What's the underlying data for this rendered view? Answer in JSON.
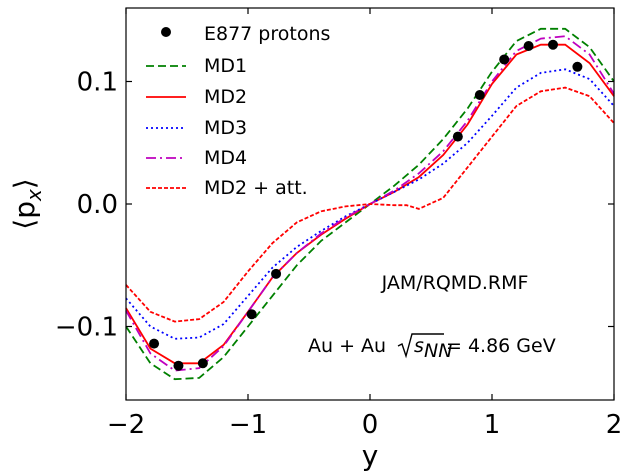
{
  "chart_data": {
    "type": "line",
    "title": "",
    "xlabel": "y",
    "ylabel": "⟨p_x⟩",
    "xlim": [
      -2,
      2
    ],
    "ylim": [
      -0.16,
      0.16
    ],
    "xticks": [
      -2,
      -1,
      0,
      1,
      2
    ],
    "xtick_labels": [
      "−2",
      "−1",
      "0",
      "1",
      "2"
    ],
    "yticks": [
      -0.1,
      0.0,
      0.1
    ],
    "ytick_labels": [
      "−0.1",
      "0.0",
      "0.1"
    ],
    "grid": false,
    "legend_position": "top-left",
    "annotations": [
      {
        "text": "JAM/RQMD.RMF"
      },
      {
        "prefix": "Au + Au ",
        "radicand": "s",
        "subscript": "NN",
        "suffix": " = 4.86 GeV"
      }
    ],
    "points": {
      "name": "E877 protons",
      "color": "#000000",
      "x": [
        -1.77,
        -1.57,
        -1.37,
        -0.97,
        -0.77,
        0.72,
        0.9,
        1.1,
        1.3,
        1.5,
        1.7
      ],
      "y": [
        -0.114,
        -0.132,
        -0.13,
        -0.09,
        -0.057,
        0.055,
        0.089,
        0.118,
        0.129,
        0.13,
        0.112
      ]
    },
    "series": [
      {
        "name": "MD1",
        "color": "#008000",
        "dash": "8,4",
        "x": [
          -2.0,
          -1.8,
          -1.6,
          -1.4,
          -1.2,
          -1.0,
          -0.8,
          -0.6,
          -0.4,
          -0.2,
          0.0,
          0.2,
          0.4,
          0.6,
          0.8,
          1.0,
          1.2,
          1.4,
          1.6,
          1.8,
          2.0
        ],
        "y": [
          -0.1,
          -0.13,
          -0.143,
          -0.142,
          -0.125,
          -0.1,
          -0.075,
          -0.05,
          -0.03,
          -0.015,
          0.0,
          0.015,
          0.032,
          0.053,
          0.078,
          0.108,
          0.133,
          0.143,
          0.143,
          0.128,
          0.1
        ]
      },
      {
        "name": "MD2",
        "color": "#ff0000",
        "dash": "",
        "x": [
          -2.0,
          -1.8,
          -1.6,
          -1.4,
          -1.2,
          -1.0,
          -0.8,
          -0.6,
          -0.4,
          -0.2,
          0.0,
          0.2,
          0.4,
          0.6,
          0.8,
          1.0,
          1.2,
          1.4,
          1.6,
          1.8,
          2.0
        ],
        "y": [
          -0.085,
          -0.118,
          -0.13,
          -0.13,
          -0.115,
          -0.088,
          -0.06,
          -0.04,
          -0.025,
          -0.012,
          0.0,
          0.01,
          0.022,
          0.04,
          0.065,
          0.098,
          0.122,
          0.13,
          0.13,
          0.115,
          0.088
        ]
      },
      {
        "name": "MD3",
        "color": "#0000ff",
        "dash": "2,3",
        "x": [
          -2.0,
          -1.8,
          -1.6,
          -1.4,
          -1.2,
          -1.0,
          -0.8,
          -0.6,
          -0.4,
          -0.2,
          0.0,
          0.2,
          0.4,
          0.6,
          0.8,
          1.0,
          1.2,
          1.4,
          1.6,
          1.8,
          2.0
        ],
        "y": [
          -0.077,
          -0.1,
          -0.11,
          -0.109,
          -0.098,
          -0.075,
          -0.052,
          -0.035,
          -0.022,
          -0.01,
          0.0,
          0.01,
          0.02,
          0.033,
          0.05,
          0.072,
          0.095,
          0.107,
          0.11,
          0.102,
          0.08
        ]
      },
      {
        "name": "MD4",
        "color": "#bf00bf",
        "dash": "10,4,2,4",
        "x": [
          -2.0,
          -1.8,
          -1.6,
          -1.4,
          -1.2,
          -1.0,
          -0.8,
          -0.6,
          -0.4,
          -0.2,
          0.0,
          0.2,
          0.4,
          0.6,
          0.8,
          1.0,
          1.2,
          1.4,
          1.6,
          1.8,
          2.0
        ],
        "y": [
          -0.087,
          -0.122,
          -0.136,
          -0.134,
          -0.116,
          -0.088,
          -0.06,
          -0.04,
          -0.024,
          -0.011,
          0.0,
          0.011,
          0.025,
          0.043,
          0.068,
          0.1,
          0.125,
          0.135,
          0.137,
          0.122,
          0.09
        ]
      },
      {
        "name": "MD2 + att.",
        "color": "#ff0000",
        "dash": "4,2",
        "x": [
          -2.0,
          -1.8,
          -1.6,
          -1.4,
          -1.2,
          -1.0,
          -0.8,
          -0.6,
          -0.4,
          -0.2,
          0.0,
          0.2,
          0.3,
          0.4,
          0.6,
          0.8,
          1.0,
          1.2,
          1.4,
          1.6,
          1.8,
          2.0
        ],
        "y": [
          -0.066,
          -0.088,
          -0.096,
          -0.094,
          -0.08,
          -0.055,
          -0.032,
          -0.015,
          -0.006,
          -0.002,
          0.0,
          -0.001,
          -0.001,
          -0.004,
          0.005,
          0.03,
          0.055,
          0.08,
          0.092,
          0.095,
          0.088,
          0.066
        ]
      }
    ]
  }
}
